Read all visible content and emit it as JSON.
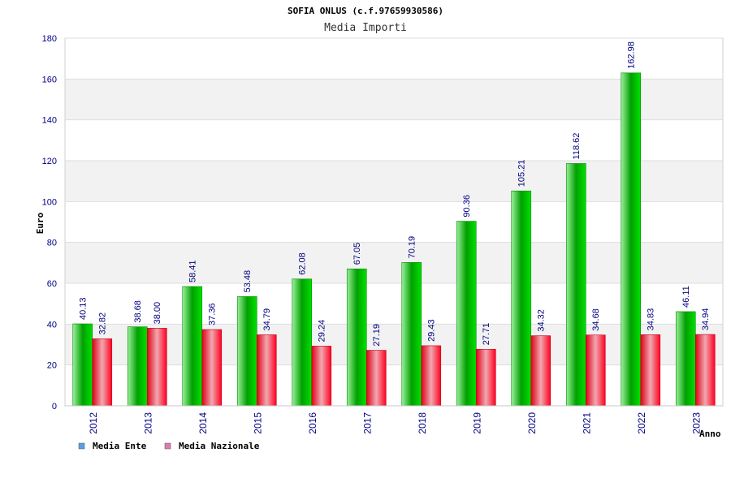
{
  "chart_data": {
    "type": "bar",
    "title": "SOFIA ONLUS (c.f.97659930586)",
    "subtitle": "Media Importi",
    "xlabel": "Anno",
    "ylabel": "Euro",
    "ylim": [
      0,
      180
    ],
    "yticks": [
      0,
      20,
      40,
      60,
      80,
      100,
      120,
      140,
      160,
      180
    ],
    "categories": [
      "2012",
      "2013",
      "2014",
      "2015",
      "2016",
      "2017",
      "2018",
      "2019",
      "2020",
      "2021",
      "2022",
      "2023"
    ],
    "series": [
      {
        "name": "Media Ente",
        "values": [
          40.13,
          38.68,
          58.41,
          53.48,
          62.08,
          67.05,
          70.19,
          90.36,
          105.21,
          118.62,
          162.98,
          46.11
        ],
        "labels": [
          "40.13",
          "38.68",
          "58.41",
          "53.48",
          "62.08",
          "67.05",
          "70.19",
          "90.36",
          "105.21",
          "118.62",
          "162.98",
          "46.11"
        ],
        "color": "#00c000",
        "legend_color": "#5a9ee6"
      },
      {
        "name": "Media Nazionale",
        "values": [
          32.82,
          38.0,
          37.36,
          34.79,
          29.24,
          27.19,
          29.43,
          27.71,
          34.32,
          34.68,
          34.83,
          34.94
        ],
        "labels": [
          "32.82",
          "38.00",
          "37.36",
          "34.79",
          "29.24",
          "27.19",
          "29.43",
          "27.71",
          "34.32",
          "34.68",
          "34.83",
          "34.94"
        ],
        "color": "#f00020",
        "legend_color": "#e07aa8"
      }
    ],
    "grid": true,
    "legend": "bottom-left"
  }
}
